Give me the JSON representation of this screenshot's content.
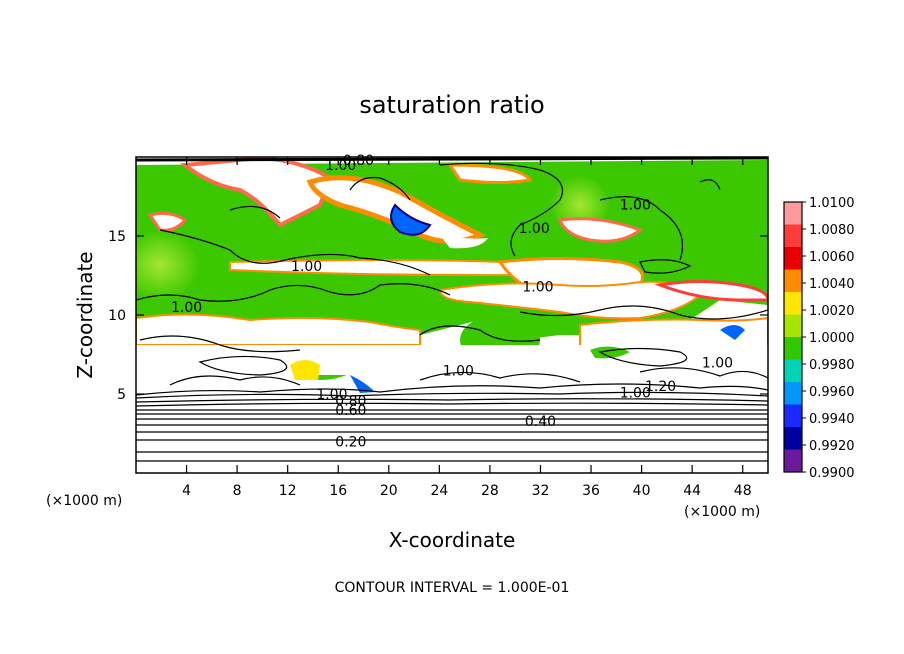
{
  "chart_data": {
    "type": "heatmap",
    "title": "saturation ratio",
    "xlabel": "X-coordinate",
    "ylabel": "Z-coordinate",
    "x_unit": "(×1000 m)",
    "y_unit": "(×1000 m)",
    "xlim": [
      0,
      50
    ],
    "ylim": [
      0,
      20
    ],
    "x_ticks": [
      4,
      8,
      12,
      16,
      20,
      24,
      28,
      32,
      36,
      40,
      44,
      48
    ],
    "y_ticks": [
      5,
      10,
      15
    ],
    "colorbar": {
      "levels": [
        1.01,
        1.008,
        1.006,
        1.004,
        1.002,
        1.0,
        0.998,
        0.996,
        0.994,
        0.992,
        0.99
      ],
      "labels": [
        "1.0100",
        "1.0080",
        "1.0060",
        "1.0040",
        "1.0020",
        "1.0000",
        "0.9980",
        "0.9960",
        "0.9940",
        "0.9920",
        "0.9900"
      ],
      "colors": [
        "#ff9a9a",
        "#ff3c3c",
        "#e80000",
        "#ff8c00",
        "#ffe600",
        "#a6e600",
        "#32c800",
        "#00d2b4",
        "#0096ff",
        "#1a2aff",
        "#0000a0",
        "#6a1a9a"
      ]
    },
    "contour_interval_label": "CONTOUR INTERVAL = 1.000E-01",
    "contour_labels": [
      {
        "text": "0.20",
        "x": 17.0,
        "z": 2.0
      },
      {
        "text": "0.40",
        "x": 32.0,
        "z": 3.3
      },
      {
        "text": "0.60",
        "x": 17.0,
        "z": 4.0
      },
      {
        "text": "0.80",
        "x": 17.0,
        "z": 4.6
      },
      {
        "text": "1.00",
        "x": 15.5,
        "z": 5.0
      },
      {
        "text": "1.00",
        "x": 25.5,
        "z": 6.5
      },
      {
        "text": "1.00",
        "x": 39.5,
        "z": 5.1
      },
      {
        "text": "1.20",
        "x": 41.5,
        "z": 5.5
      },
      {
        "text": "1.00",
        "x": 4.0,
        "z": 10.5
      },
      {
        "text": "1.00",
        "x": 13.5,
        "z": 13.1
      },
      {
        "text": "1.00",
        "x": 31.8,
        "z": 11.8
      },
      {
        "text": "1.00",
        "x": 31.5,
        "z": 15.5
      },
      {
        "text": "1.00",
        "x": 39.5,
        "z": 17.0
      },
      {
        "text": "1.00",
        "x": 46.0,
        "z": 7.0
      },
      {
        "text": "1.00",
        "x": 16.2,
        "z": 19.5
      },
      {
        "text": "0.80",
        "x": 17.6,
        "z": 19.8
      }
    ]
  }
}
